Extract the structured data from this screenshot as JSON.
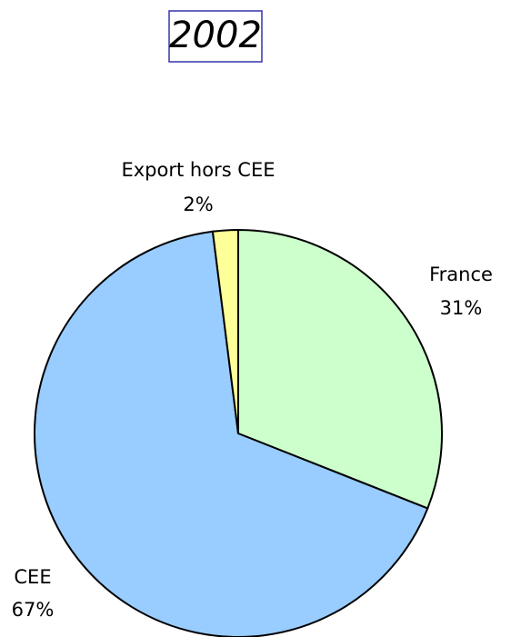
{
  "chart_data": {
    "type": "pie",
    "title": "2002",
    "categories": [
      "France",
      "CEE",
      "Export hors CEE"
    ],
    "values": [
      31,
      67,
      2
    ],
    "value_labels": [
      "31%",
      "67%",
      "2%"
    ],
    "colors": [
      "#ccffcc",
      "#99ccff",
      "#ffff99"
    ]
  }
}
